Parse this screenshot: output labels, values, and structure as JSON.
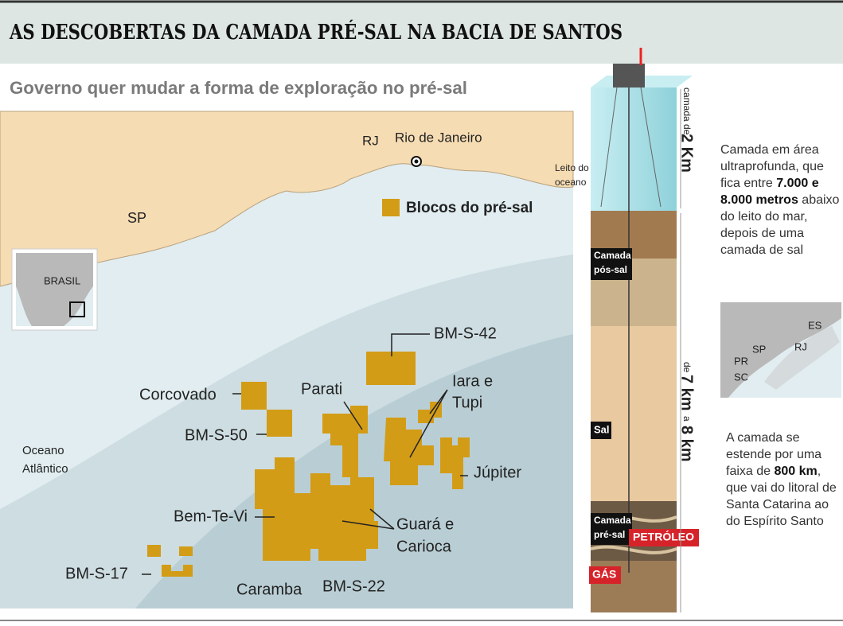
{
  "header": {
    "title": "AS DESCOBERTAS DA CAMADA PRÉ-SAL NA BACIA DE SANTOS",
    "subtitle": "Governo quer mudar a forma de exploração no pré-sal"
  },
  "map": {
    "state_rj": "RJ",
    "city": "Rio de Janeiro",
    "state_sp": "SP",
    "inset_label": "BRASIL",
    "legend": "Blocos do pré-sal",
    "ocean": [
      "Oceano",
      "Atlântico"
    ],
    "blocks": {
      "bm_s_42": "BM-S-42",
      "corcovado": "Corcovado",
      "parati": "Parati",
      "iara_tupi": [
        "Iara e",
        "Tupi"
      ],
      "bm_s_50": "BM-S-50",
      "jupiter": "Júpiter",
      "bem_te_vi": "Bem-Te-Vi",
      "guara_carioca": [
        "Guará e",
        "Carioca"
      ],
      "bm_s_17": "BM-S-17",
      "caramba": "Caramba",
      "bm_s_22": "BM-S-22"
    }
  },
  "section": {
    "seabed": [
      "Leito do",
      "oceano"
    ],
    "water_prefix": "camada de",
    "water_depth": "2 Km",
    "post_salt": [
      "Camada",
      "pós-sal"
    ],
    "salt": "Sal",
    "pre_salt": [
      "Camada",
      "pré-sal"
    ],
    "oil": "PETRÓLEO",
    "gas": "GÁS",
    "depth_a": "de",
    "depth_b": "7 km",
    "depth_c": "a",
    "depth_d": "8 km"
  },
  "notes": {
    "first": {
      "text_a": "Camada em área ultraprofunda, que fica entre",
      "bold": "7.000 e 8.000 metros",
      "text_b": "abaixo do leito do mar, depois de uma camada de sal"
    },
    "small_map": {
      "es": "ES",
      "rj": "RJ",
      "sp": "SP",
      "pr": "PR",
      "sc": "SC"
    },
    "second": {
      "text_a": "A camada se estende por uma faixa de",
      "bold": "800 km",
      "text_b": ", que vai do litoral de Santa Catarina ao do Espírito Santo"
    }
  }
}
